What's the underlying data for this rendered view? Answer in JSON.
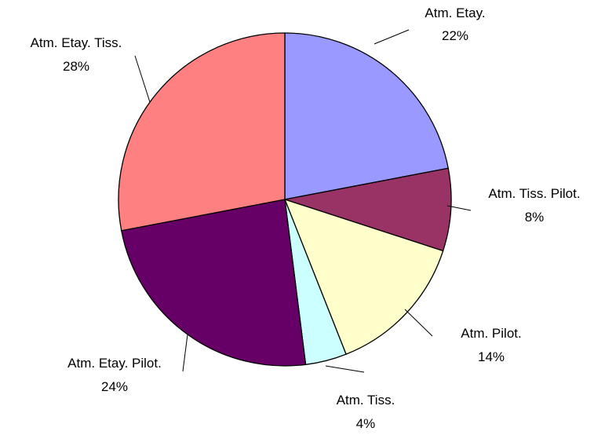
{
  "chart_data": {
    "type": "pie",
    "title": "",
    "start_angle_deg": 0,
    "direction": "clockwise",
    "legend": "none",
    "slices": [
      {
        "name": "Atm. Etay.",
        "value": 22,
        "percent_label": "22%",
        "color": "#9999FF"
      },
      {
        "name": "Atm. Tiss. Pilot.",
        "value": 8,
        "percent_label": "8%",
        "color": "#993366"
      },
      {
        "name": "Atm. Pilot.",
        "value": 14,
        "percent_label": "14%",
        "color": "#FFFFCC"
      },
      {
        "name": "Atm. Tiss.",
        "value": 4,
        "percent_label": "4%",
        "color": "#CCFFFF"
      },
      {
        "name": "Atm. Etay. Pilot.",
        "value": 24,
        "percent_label": "24%",
        "color": "#660066"
      },
      {
        "name": "Atm. Etay. Tiss.",
        "value": 28,
        "percent_label": "28%",
        "color": "#FF8080"
      }
    ]
  }
}
